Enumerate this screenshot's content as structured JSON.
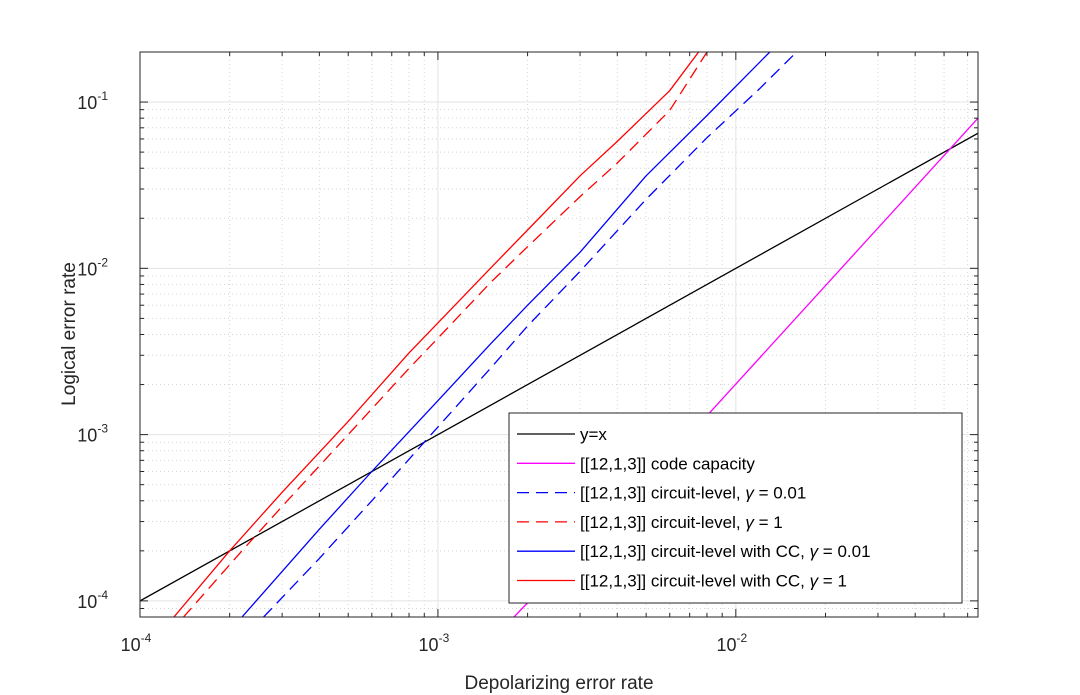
{
  "chart_data": {
    "type": "line",
    "title": "",
    "xlabel": "Depolarizing error rate",
    "ylabel": "Logical error rate",
    "xscale": "log",
    "yscale": "log",
    "xlim": [
      0.0001,
      0.065
    ],
    "ylim": [
      8e-05,
      0.2
    ],
    "grid": true,
    "minor_grid": true,
    "legend_position": "bottom-right",
    "x_ticks": [
      {
        "value": 0.0001,
        "base": "10",
        "exp": "-4"
      },
      {
        "value": 0.001,
        "base": "10",
        "exp": "-3"
      },
      {
        "value": 0.01,
        "base": "10",
        "exp": "-2"
      }
    ],
    "y_ticks": [
      {
        "value": 0.0001,
        "base": "10",
        "exp": "-4"
      },
      {
        "value": 0.001,
        "base": "10",
        "exp": "-3"
      },
      {
        "value": 0.01,
        "base": "10",
        "exp": "-2"
      },
      {
        "value": 0.1,
        "base": "10",
        "exp": "-1"
      }
    ],
    "series": [
      {
        "name": "y=x",
        "color": "#000000",
        "dash": "solid",
        "x": [
          0.0001,
          0.065
        ],
        "y": [
          0.0001,
          0.065
        ]
      },
      {
        "name": "[[12,1,3]] code capacity",
        "color": "#ff00ff",
        "dash": "solid",
        "x": [
          0.0018,
          0.008,
          0.065
        ],
        "y": [
          8e-05,
          0.0013,
          0.08
        ]
      },
      {
        "name": "[[12,1,3]] circuit-level, γ = 0.01",
        "color": "#0000ff",
        "dash": "dashed",
        "x": [
          0.00026,
          0.0004,
          0.0006,
          0.0009,
          0.0015,
          0.002,
          0.003,
          0.005,
          0.008,
          0.012,
          0.016
        ],
        "y": [
          8e-05,
          0.00018,
          0.0004,
          0.0009,
          0.0025,
          0.0045,
          0.0096,
          0.026,
          0.061,
          0.12,
          0.2
        ]
      },
      {
        "name": "[[12,1,3]] circuit-level, γ = 1",
        "color": "#ff0000",
        "dash": "dashed",
        "x": [
          0.00014,
          0.00022,
          0.0003,
          0.0005,
          0.0008,
          0.001,
          0.0015,
          0.002,
          0.003,
          0.004,
          0.006,
          0.008
        ],
        "y": [
          8e-05,
          0.0002,
          0.00037,
          0.001,
          0.0025,
          0.0038,
          0.0082,
          0.0135,
          0.027,
          0.043,
          0.089,
          0.2
        ]
      },
      {
        "name": "[[12,1,3]] circuit-level with CC, γ = 0.01",
        "color": "#0000ff",
        "dash": "solid",
        "x": [
          0.00022,
          0.0004,
          0.0006,
          0.001,
          0.0015,
          0.002,
          0.003,
          0.005,
          0.008,
          0.013
        ],
        "y": [
          8e-05,
          0.00027,
          0.0006,
          0.0016,
          0.0035,
          0.006,
          0.0125,
          0.036,
          0.083,
          0.2
        ]
      },
      {
        "name": "[[12,1,3]] circuit-level with CC, γ = 1",
        "color": "#ff0000",
        "dash": "solid",
        "x": [
          0.00013,
          0.0002,
          0.0003,
          0.0005,
          0.0008,
          0.001,
          0.0015,
          0.002,
          0.003,
          0.004,
          0.006,
          0.0075
        ],
        "y": [
          8e-05,
          0.0002,
          0.00045,
          0.0012,
          0.0031,
          0.0047,
          0.01,
          0.017,
          0.036,
          0.058,
          0.117,
          0.2
        ]
      }
    ],
    "legend_entries": [
      {
        "label": "y=x"
      },
      {
        "label": "[[12,1,3]] code capacity"
      },
      {
        "label_pre": "[[12,1,3]] circuit-level, ",
        "symbol": "γ",
        "label_post": " = 0.01"
      },
      {
        "label_pre": "[[12,1,3]] circuit-level, ",
        "symbol": "γ",
        "label_post": " = 1"
      },
      {
        "label_pre": "[[12,1,3]] circuit-level with CC, ",
        "symbol": "γ",
        "label_post": " = 0.01"
      },
      {
        "label_pre": "[[12,1,3]] circuit-level with CC, ",
        "symbol": "γ",
        "label_post": " = 1"
      }
    ]
  }
}
